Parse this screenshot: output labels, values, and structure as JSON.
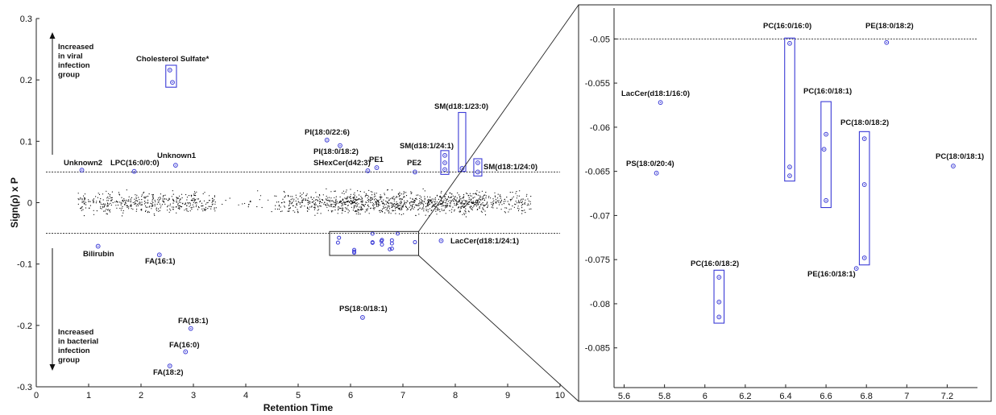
{
  "colors": {
    "highlight": "#3b3bd6",
    "background_points": "#000000",
    "axis": "#222222"
  },
  "chart_data": [
    {
      "type": "scatter",
      "panel": "main",
      "xlabel": "Retention Time",
      "ylabel": "Sign(ρ) x P",
      "xlim": [
        0,
        10
      ],
      "ylim": [
        -0.3,
        0.3
      ],
      "x_ticks": [
        "0",
        "1",
        "2",
        "3",
        "4",
        "5",
        "6",
        "7",
        "8",
        "9",
        "10"
      ],
      "y_ticks": [
        "-0.3",
        "-0.2",
        "-0.1",
        "0",
        "0.1",
        "0.2",
        "0.3"
      ],
      "thresholds": [
        0.05,
        -0.05
      ],
      "notes": {
        "upper": [
          "Increased",
          "in viral",
          "infection",
          "group"
        ],
        "lower": [
          "Increased",
          "in bacterial",
          "infection",
          "group"
        ]
      },
      "background_band": {
        "x_range": [
          0.8,
          9.45
        ],
        "y_range": [
          -0.045,
          0.045
        ],
        "density_gap": [
          3.45,
          4.55
        ]
      },
      "highlighted_points": [
        {
          "label": "Cholesterol Sulfate*",
          "x": 2.55,
          "y": 0.216
        },
        {
          "label": "",
          "x": 2.6,
          "y": 0.196
        },
        {
          "label": "Unknown2",
          "x": 0.87,
          "y": 0.053
        },
        {
          "label": "LPC(16:0/0:0)",
          "x": 1.87,
          "y": 0.051
        },
        {
          "label": "Unknown1",
          "x": 2.66,
          "y": 0.061
        },
        {
          "label": "PI(18:0/22:6)",
          "x": 5.55,
          "y": 0.102
        },
        {
          "label": "PI(18:0/18:2)",
          "x": 5.8,
          "y": 0.093
        },
        {
          "label": "SHexCer(d42:3)",
          "x": 6.33,
          "y": 0.052
        },
        {
          "label": "PE1",
          "x": 6.5,
          "y": 0.057
        },
        {
          "label": "PE2",
          "x": 7.23,
          "y": 0.05
        },
        {
          "label": "SM(d18:1/24:1)",
          "x": 7.8,
          "y": 0.077
        },
        {
          "label": "",
          "x": 7.8,
          "y": 0.065
        },
        {
          "label": "",
          "x": 7.8,
          "y": 0.054
        },
        {
          "label": "SM(d18:1/23:0)",
          "x": 8.13,
          "y": 0.056
        },
        {
          "label": "SM(d18:1/24:0)",
          "x": 8.43,
          "y": 0.065
        },
        {
          "label": "",
          "x": 8.43,
          "y": 0.05
        },
        {
          "label": "Bilirubin",
          "x": 1.18,
          "y": -0.071
        },
        {
          "label": "FA(16:1)",
          "x": 2.35,
          "y": -0.085
        },
        {
          "label": "LacCer(d18:1/24:1)",
          "x": 7.73,
          "y": -0.062
        },
        {
          "label": "PS(18:0/18:1)",
          "x": 6.23,
          "y": -0.187
        },
        {
          "label": "FA(18:1)",
          "x": 2.95,
          "y": -0.205
        },
        {
          "label": "FA(16:0)",
          "x": 2.85,
          "y": -0.243
        },
        {
          "label": "FA(18:2)",
          "x": 2.55,
          "y": -0.266
        }
      ],
      "zoom_region": {
        "x_range": [
          5.6,
          7.3
        ],
        "y_range": [
          -0.086,
          -0.047
        ]
      }
    },
    {
      "type": "scatter",
      "panel": "zoom",
      "xlim": [
        5.55,
        7.35
      ],
      "ylim": [
        -0.0895,
        -0.0465
      ],
      "x_ticks": [
        "5.6",
        "5.8",
        "6",
        "6.2",
        "6.4",
        "6.6",
        "6.8",
        "7",
        "7.2"
      ],
      "y_ticks": [
        "-0.05",
        "-0.055",
        "-0.06",
        "-0.065",
        "-0.07",
        "-0.075",
        "-0.08",
        "-0.085"
      ],
      "threshold": -0.05,
      "points": [
        {
          "label": "LacCer(d18:1/16:0)",
          "x": 5.78,
          "y": -0.0572
        },
        {
          "label": "PS(18:0/20:4)",
          "x": 5.76,
          "y": -0.0652
        },
        {
          "label": "PC(16:0/18:2)",
          "x": 6.07,
          "y": -0.077
        },
        {
          "label": "",
          "x": 6.07,
          "y": -0.0798
        },
        {
          "label": "",
          "x": 6.07,
          "y": -0.0815
        },
        {
          "label": "PC(16:0/16:0)",
          "x": 6.42,
          "y": -0.0505
        },
        {
          "label": "",
          "x": 6.42,
          "y": -0.0645
        },
        {
          "label": "",
          "x": 6.42,
          "y": -0.0655
        },
        {
          "label": "PE(18:0/18:2)",
          "x": 6.9,
          "y": -0.0504
        },
        {
          "label": "PC(16:0/18:1)",
          "x": 6.6,
          "y": -0.0608
        },
        {
          "label": "",
          "x": 6.59,
          "y": -0.0625
        },
        {
          "label": "",
          "x": 6.6,
          "y": -0.0683
        },
        {
          "label": "PC(18:0/18:2)",
          "x": 6.79,
          "y": -0.0613
        },
        {
          "label": "",
          "x": 6.79,
          "y": -0.0665
        },
        {
          "label": "",
          "x": 6.79,
          "y": -0.0748
        },
        {
          "label": "PE(16:0/18:1)",
          "x": 6.75,
          "y": -0.076
        },
        {
          "label": "PC(18:0/18:1)",
          "x": 7.23,
          "y": -0.0644
        }
      ]
    }
  ]
}
